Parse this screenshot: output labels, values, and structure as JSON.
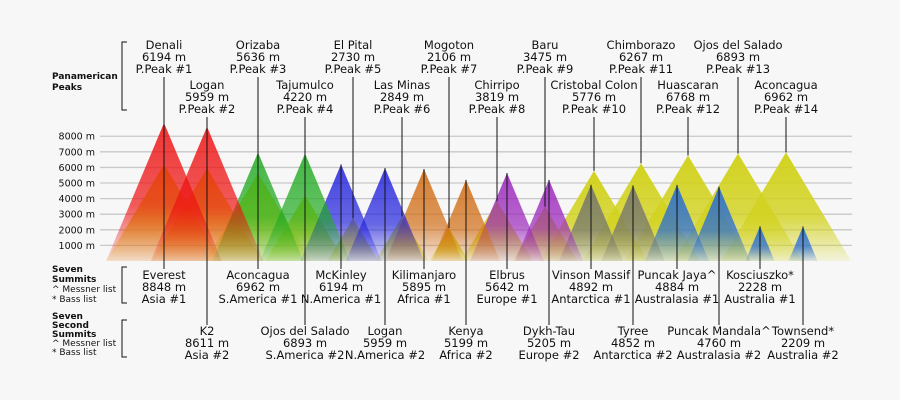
{
  "chart_data": {
    "type": "area",
    "title": "",
    "xlabel": "",
    "ylabel": "",
    "y_unit": "m",
    "ylim": [
      0,
      9000
    ],
    "grid": true,
    "y_ticks": [
      {
        "value": 1000,
        "label": "1000 m"
      },
      {
        "value": 2000,
        "label": "2000 m"
      },
      {
        "value": 3000,
        "label": "3000 m"
      },
      {
        "value": 4000,
        "label": "4000 m"
      },
      {
        "value": 5000,
        "label": "5000 m"
      },
      {
        "value": 6000,
        "label": "6000 m"
      },
      {
        "value": 7000,
        "label": "7000 m"
      },
      {
        "value": 8000,
        "label": "8000 m"
      }
    ],
    "sections": {
      "panamerican": {
        "title": [
          "Panamerican",
          "Peaks"
        ]
      },
      "seven": {
        "title": [
          "Seven",
          "Summits"
        ],
        "notes": [
          "^ Messner list",
          "* Bass list"
        ]
      },
      "second": {
        "title": [
          "Seven",
          "Second",
          "Summits"
        ],
        "notes": [
          "^ Messner list",
          "* Bass list"
        ]
      }
    },
    "series": [
      {
        "name": "Panamerican Peaks",
        "points": [
          {
            "name": "Denali",
            "value": 6194,
            "height": "6194 m",
            "rank": "P.Peak #1"
          },
          {
            "name": "Logan",
            "value": 5959,
            "height": "5959 m",
            "rank": "P.Peak #2"
          },
          {
            "name": "Orizaba",
            "value": 5636,
            "height": "5636 m",
            "rank": "P.Peak #3"
          },
          {
            "name": "Tajumulco",
            "value": 4220,
            "height": "4220 m",
            "rank": "P.Peak #4"
          },
          {
            "name": "El Pital",
            "value": 2730,
            "height": "2730 m",
            "rank": "P.Peak #5"
          },
          {
            "name": "Las Minas",
            "value": 2849,
            "height": "2849 m",
            "rank": "P.Peak #6"
          },
          {
            "name": "Mogoton",
            "value": 2106,
            "height": "2106 m",
            "rank": "P.Peak #7"
          },
          {
            "name": "Chirripo",
            "value": 3819,
            "height": "3819 m",
            "rank": "P.Peak #8"
          },
          {
            "name": "Baru",
            "value": 3475,
            "height": "3475 m",
            "rank": "P.Peak #9"
          },
          {
            "name": "Cristobal Colon",
            "value": 5776,
            "height": "5776 m",
            "rank": "P.Peak #10"
          },
          {
            "name": "Chimborazo",
            "value": 6267,
            "height": "6267 m",
            "rank": "P.Peak #11"
          },
          {
            "name": "Huascaran",
            "value": 6768,
            "height": "6768 m",
            "rank": "P.Peak #12"
          },
          {
            "name": "Ojos del Salado",
            "value": 6893,
            "height": "6893 m",
            "rank": "P.Peak #13"
          },
          {
            "name": "Aconcagua",
            "value": 6962,
            "height": "6962 m",
            "rank": "P.Peak #14"
          }
        ]
      },
      {
        "name": "Seven Summits",
        "points": [
          {
            "name": "Everest",
            "value": 8848,
            "height": "8848 m",
            "rank": "Asia #1",
            "color": "#ee1111"
          },
          {
            "name": "Aconcagua",
            "value": 6962,
            "height": "6962 m",
            "rank": "S.America #1",
            "color": "#22aa22"
          },
          {
            "name": "McKinley",
            "value": 6194,
            "height": "6194 m",
            "rank": "N.America #1",
            "color": "#2222dd"
          },
          {
            "name": "Kilimanjaro",
            "value": 5895,
            "height": "5895 m",
            "rank": "Africa #1",
            "color": "#d06a10"
          },
          {
            "name": "Elbrus",
            "value": 5642,
            "height": "5642 m",
            "rank": "Europe #1",
            "color": "#9922bb"
          },
          {
            "name": "Vinson Massif",
            "value": 4892,
            "height": "4892 m",
            "rank": "Antarctica #1",
            "color": "#707070"
          },
          {
            "name": "Puncak Jaya^",
            "value": 4884,
            "height": "4884 m",
            "rank": "Australasia #1",
            "color": "#1e66dd"
          },
          {
            "name": "Kosciuszko*",
            "value": 2228,
            "height": "2228 m",
            "rank": "Australia #1",
            "color": "#1e66dd"
          }
        ]
      },
      {
        "name": "Seven Second Summits",
        "points": [
          {
            "name": "K2",
            "value": 8611,
            "height": "8611 m",
            "rank": "Asia #2",
            "color": "#ee1111"
          },
          {
            "name": "Ojos del Salado",
            "value": 6893,
            "height": "6893 m",
            "rank": "S.America #2",
            "color": "#22aa22"
          },
          {
            "name": "Logan",
            "value": 5959,
            "height": "5959 m",
            "rank": "N.America #2",
            "color": "#2222dd"
          },
          {
            "name": "Kenya",
            "value": 5199,
            "height": "5199 m",
            "rank": "Africa #2",
            "color": "#d06a10"
          },
          {
            "name": "Dykh-Tau",
            "value": 5205,
            "height": "5205 m",
            "rank": "Europe #2",
            "color": "#9922bb"
          },
          {
            "name": "Tyree",
            "value": 4852,
            "height": "4852 m",
            "rank": "Antarctica #2",
            "color": "#707070"
          },
          {
            "name": "Puncak Mandala^",
            "value": 4760,
            "height": "4760 m",
            "rank": "Australasia #2",
            "color": "#1e66dd"
          },
          {
            "name": "Townsend*",
            "value": 2209,
            "height": "2209 m",
            "rank": "Australia #2",
            "color": "#1e66dd"
          }
        ]
      }
    ],
    "yellow_color": "#d2d21e"
  }
}
